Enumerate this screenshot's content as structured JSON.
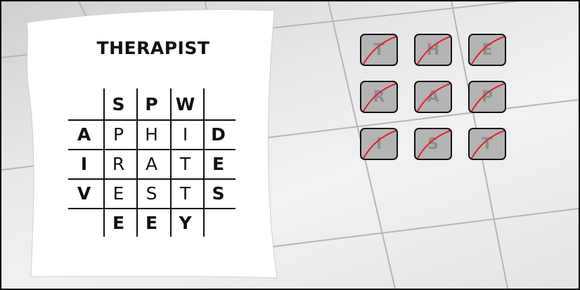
{
  "puzzle": {
    "title": "THERAPIST",
    "grid": [
      [
        {
          "c": "",
          "b": true
        },
        {
          "c": "S",
          "b": true
        },
        {
          "c": "P",
          "b": true
        },
        {
          "c": "W",
          "b": true
        },
        {
          "c": "",
          "b": true
        }
      ],
      [
        {
          "c": "A",
          "b": true
        },
        {
          "c": "P",
          "b": false
        },
        {
          "c": "H",
          "b": false
        },
        {
          "c": "I",
          "b": false
        },
        {
          "c": "D",
          "b": true
        }
      ],
      [
        {
          "c": "I",
          "b": true
        },
        {
          "c": "R",
          "b": false
        },
        {
          "c": "A",
          "b": false
        },
        {
          "c": "T",
          "b": false
        },
        {
          "c": "E",
          "b": true
        }
      ],
      [
        {
          "c": "V",
          "b": true
        },
        {
          "c": "E",
          "b": false
        },
        {
          "c": "S",
          "b": false
        },
        {
          "c": "T",
          "b": false
        },
        {
          "c": "S",
          "b": true
        }
      ],
      [
        {
          "c": "",
          "b": true
        },
        {
          "c": "E",
          "b": true
        },
        {
          "c": "E",
          "b": true
        },
        {
          "c": "Y",
          "b": true
        },
        {
          "c": "",
          "b": true
        }
      ]
    ]
  },
  "tiles": {
    "letters": [
      "T",
      "H",
      "E",
      "R",
      "A",
      "P",
      "I",
      "S",
      "T"
    ],
    "state": "crossed-out",
    "strike_color": "#e0202a"
  }
}
